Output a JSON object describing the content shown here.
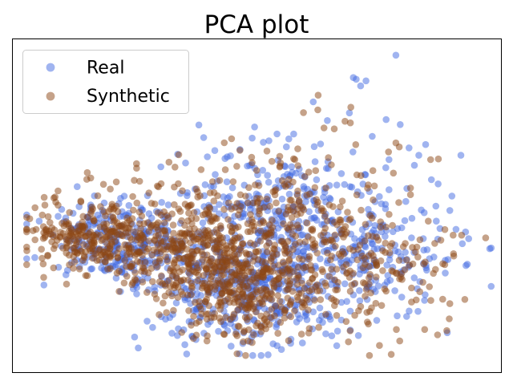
{
  "chart_data": {
    "type": "scatter",
    "title": "PCA plot",
    "xlabel": "",
    "ylabel": "",
    "xlim": [
      0,
      100
    ],
    "ylim": [
      0,
      100
    ],
    "grid": false,
    "ticks_visible": false,
    "legend": {
      "placement": "top-left",
      "entries": [
        "Real",
        "Synthetic"
      ]
    },
    "series": [
      {
        "name": "Real",
        "color": "#4169E1",
        "opacity": 0.5,
        "anchor_points": [
          [
            78.5,
            95
          ],
          [
            69.8,
            88.3
          ],
          [
            70.4,
            87.8
          ],
          [
            72.4,
            87.3
          ],
          [
            71.3,
            85.8
          ],
          [
            61.6,
            81
          ],
          [
            69,
            77.7
          ],
          [
            76.5,
            75.7
          ],
          [
            64.5,
            75.4
          ],
          [
            79.4,
            74.2
          ],
          [
            54.2,
            71.4
          ],
          [
            56.6,
            69.9
          ],
          [
            51.4,
            68.9
          ],
          [
            63.1,
            68.4
          ],
          [
            61.8,
            67.6
          ],
          [
            81.2,
            67.2
          ],
          [
            91.8,
            65
          ],
          [
            83.2,
            65
          ],
          [
            77.1,
            63.7
          ],
          [
            35.5,
            62.7
          ],
          [
            27.7,
            52.9
          ],
          [
            22.2,
            52.1
          ],
          [
            84.3,
            47.8
          ],
          [
            97.7,
            37
          ],
          [
            93.4,
            40
          ],
          [
            92.1,
            38.5
          ],
          [
            88.6,
            33.5
          ],
          [
            88.6,
            29.7
          ],
          [
            84.5,
            23.2
          ],
          [
            79.7,
            22.5
          ],
          [
            54.2,
            19.2
          ],
          [
            47.2,
            8.6
          ],
          [
            36.9,
            10.6
          ],
          [
            44.8,
            7.8
          ],
          [
            46.5,
            5.5
          ],
          [
            55.1,
            6.8
          ],
          [
            65.4,
            10.9
          ],
          [
            69.2,
            12.6
          ],
          [
            10.6,
            45.1
          ],
          [
            12.1,
            43.2
          ],
          [
            17.5,
            47.1
          ],
          [
            21.3,
            28.2
          ],
          [
            25.5,
            26.8
          ],
          [
            31.4,
            15.9
          ],
          [
            58.5,
            17.2
          ],
          [
            64.3,
            16.9
          ],
          [
            83.7,
            48.6
          ],
          [
            73,
            25.5
          ]
        ],
        "clusters": [
          {
            "center": [
              22,
              39
            ],
            "spread": [
              8,
              6
            ],
            "count": 250
          },
          {
            "center": [
              45,
              26
            ],
            "spread": [
              9,
              9
            ],
            "count": 330
          },
          {
            "center": [
              55,
              48
            ],
            "spread": [
              12,
              10
            ],
            "count": 260
          },
          {
            "center": [
              72,
              38
            ],
            "spread": [
              10,
              9
            ],
            "count": 150
          },
          {
            "center": [
              63,
              23
            ],
            "spread": [
              8,
              7
            ],
            "count": 90
          }
        ]
      },
      {
        "name": "Synthetic",
        "color": "#8B4513",
        "opacity": 0.5,
        "anchor_points": [
          [
            4.7,
            49.3
          ],
          [
            6.2,
            47.1
          ],
          [
            6.5,
            41.8
          ],
          [
            6.7,
            40.4
          ],
          [
            8.8,
            52.5
          ],
          [
            15.4,
            59.8
          ],
          [
            15.3,
            57.8
          ],
          [
            25,
            57.5
          ],
          [
            30.5,
            56.5
          ],
          [
            34,
            56.5
          ],
          [
            46.6,
            66.5
          ],
          [
            49,
            64.4
          ],
          [
            54.9,
            62.7
          ],
          [
            58.5,
            61.9
          ],
          [
            62.1,
            60.4
          ],
          [
            63.8,
            73.2
          ],
          [
            65.9,
            72.9
          ],
          [
            68.1,
            75.2
          ],
          [
            69.2,
            74.7
          ],
          [
            70.3,
            68.2
          ],
          [
            73.8,
            60.4
          ],
          [
            77,
            66
          ],
          [
            78.5,
            68.7
          ],
          [
            79.2,
            67.5
          ],
          [
            85.6,
            63.7
          ],
          [
            87.2,
            63.9
          ],
          [
            81.5,
            55.2
          ],
          [
            81.5,
            53.2
          ],
          [
            82.8,
            37.5
          ],
          [
            84.5,
            33
          ],
          [
            86.6,
            30.8
          ],
          [
            88.5,
            32.2
          ],
          [
            88.1,
            32.5
          ],
          [
            90.3,
            35.5
          ],
          [
            92.6,
            21.8
          ],
          [
            81.7,
            21
          ],
          [
            78.6,
            12.8
          ],
          [
            84.4,
            12.8
          ],
          [
            34.7,
            11.9
          ],
          [
            37.1,
            10.1
          ],
          [
            37.7,
            11.1
          ],
          [
            47.3,
            9.1
          ],
          [
            71.8,
            31.3
          ],
          [
            66,
            27.7
          ],
          [
            77.8,
            44
          ],
          [
            69.3,
            79.4
          ],
          [
            62.6,
            83
          ],
          [
            59.6,
            77.8
          ],
          [
            67,
            45.7
          ],
          [
            69.8,
            36.5
          ],
          [
            16.1,
            58.2
          ],
          [
            18.7,
            56.3
          ],
          [
            26.1,
            57.2
          ]
        ],
        "clusters": [
          {
            "center": [
              18,
              40
            ],
            "spread": [
              7,
              6
            ],
            "count": 300
          },
          {
            "center": [
              38,
              35
            ],
            "spread": [
              8,
              8
            ],
            "count": 300
          },
          {
            "center": [
              48,
              25
            ],
            "spread": [
              8,
              8
            ],
            "count": 300
          },
          {
            "center": [
              55,
              45
            ],
            "spread": [
              11,
              10
            ],
            "count": 230
          },
          {
            "center": [
              72,
              30
            ],
            "spread": [
              9,
              9
            ],
            "count": 170
          }
        ]
      }
    ]
  }
}
